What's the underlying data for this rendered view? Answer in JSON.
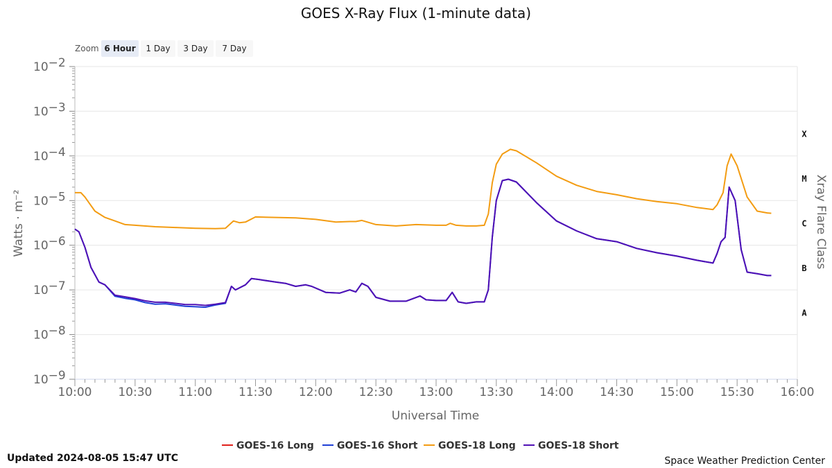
{
  "chart_data": {
    "type": "line",
    "title": "GOES X-Ray Flux (1-minute data)",
    "xlabel": "Universal Time",
    "ylabel": "Watts · m⁻²",
    "y2label": "Xray Flare Class",
    "y_scale": "log",
    "ylim": [
      1e-09,
      0.01
    ],
    "x_range": [
      "10:00",
      "16:00"
    ],
    "x_ticks": [
      "10:00",
      "10:30",
      "11:00",
      "11:30",
      "12:00",
      "12:30",
      "13:00",
      "13:30",
      "14:00",
      "14:30",
      "15:00",
      "15:30",
      "16:00"
    ],
    "y_ticks": [
      {
        "base": "10",
        "exp": "−2"
      },
      {
        "base": "10",
        "exp": "−3"
      },
      {
        "base": "10",
        "exp": "−4"
      },
      {
        "base": "10",
        "exp": "−5"
      },
      {
        "base": "10",
        "exp": "−6"
      },
      {
        "base": "10",
        "exp": "−7"
      },
      {
        "base": "10",
        "exp": "−8"
      },
      {
        "base": "10",
        "exp": "−9"
      }
    ],
    "flare_classes": [
      "X",
      "M",
      "C",
      "B",
      "A"
    ],
    "grid": true,
    "legend_position": "bottom-center",
    "series": [
      {
        "name": "GOES-16 Long",
        "color": "#e0201b",
        "points": []
      },
      {
        "name": "GOES-16 Short",
        "color": "#1f3fd6",
        "points": [
          [
            "10:00",
            2.3e-06
          ],
          [
            "10:02",
            2e-06
          ],
          [
            "10:05",
            9e-07
          ],
          [
            "10:08",
            3.2e-07
          ],
          [
            "10:12",
            1.5e-07
          ],
          [
            "10:15",
            1.3e-07
          ],
          [
            "10:20",
            7.2e-08
          ],
          [
            "10:25",
            6.5e-08
          ],
          [
            "10:30",
            6e-08
          ],
          [
            "10:35",
            5.2e-08
          ],
          [
            "10:40",
            4.8e-08
          ],
          [
            "10:45",
            4.9e-08
          ],
          [
            "10:50",
            4.6e-08
          ],
          [
            "10:55",
            4.3e-08
          ],
          [
            "11:00",
            4.2e-08
          ],
          [
            "11:05",
            4.1e-08
          ],
          [
            "11:10",
            4.6e-08
          ],
          [
            "11:15",
            5e-08
          ],
          [
            "11:18",
            1.2e-07
          ],
          [
            "11:20",
            1e-07
          ],
          [
            "11:25",
            1.3e-07
          ],
          [
            "11:28",
            1.8e-07
          ],
          [
            "11:32",
            1.7e-07
          ],
          [
            "11:40",
            1.5e-07
          ],
          [
            "11:45",
            1.4e-07
          ],
          [
            "11:50",
            1.2e-07
          ],
          [
            "11:55",
            1.3e-07
          ],
          [
            "11:58",
            1.2e-07
          ],
          [
            "12:05",
            8.8e-08
          ],
          [
            "12:12",
            8.5e-08
          ],
          [
            "12:17",
            1e-07
          ],
          [
            "12:20",
            9e-08
          ],
          [
            "12:23",
            1.4e-07
          ],
          [
            "12:26",
            1.2e-07
          ],
          [
            "12:30",
            6.8e-08
          ],
          [
            "12:37",
            5.6e-08
          ],
          [
            "12:45",
            5.6e-08
          ],
          [
            "12:52",
            7.3e-08
          ],
          [
            "12:55",
            6e-08
          ],
          [
            "13:00",
            5.8e-08
          ],
          [
            "13:05",
            5.8e-08
          ],
          [
            "13:08",
            8.8e-08
          ],
          [
            "13:11",
            5.4e-08
          ],
          [
            "13:15",
            5e-08
          ],
          [
            "13:20",
            5.4e-08
          ],
          [
            "13:24",
            5.4e-08
          ],
          [
            "13:26",
            1e-07
          ],
          [
            "13:28",
            1.5e-06
          ],
          [
            "13:30",
            1e-05
          ],
          [
            "13:33",
            2.8e-05
          ],
          [
            "13:36",
            3e-05
          ],
          [
            "13:40",
            2.6e-05
          ],
          [
            "13:50",
            9e-06
          ],
          [
            "14:00",
            3.5e-06
          ],
          [
            "14:10",
            2.1e-06
          ],
          [
            "14:20",
            1.4e-06
          ],
          [
            "14:30",
            1.2e-06
          ],
          [
            "14:40",
            8.5e-07
          ],
          [
            "14:50",
            6.8e-07
          ],
          [
            "15:00",
            5.7e-07
          ],
          [
            "15:10",
            4.6e-07
          ],
          [
            "15:18",
            4e-07
          ],
          [
            "15:20",
            6.5e-07
          ],
          [
            "15:22",
            1.2e-06
          ],
          [
            "15:24",
            1.5e-06
          ],
          [
            "15:26",
            2e-05
          ],
          [
            "15:29",
            1e-05
          ],
          [
            "15:32",
            8e-07
          ],
          [
            "15:35",
            2.5e-07
          ],
          [
            "15:40",
            2.3e-07
          ],
          [
            "15:45",
            2.1e-07
          ],
          [
            "15:47",
            2.1e-07
          ]
        ]
      },
      {
        "name": "GOES-18 Long",
        "color": "#f39c12",
        "points": [
          [
            "10:00",
            1.5e-05
          ],
          [
            "10:03",
            1.5e-05
          ],
          [
            "10:05",
            1.2e-05
          ],
          [
            "10:10",
            5.8e-06
          ],
          [
            "10:15",
            4.2e-06
          ],
          [
            "10:20",
            3.5e-06
          ],
          [
            "10:25",
            2.9e-06
          ],
          [
            "10:30",
            2.8e-06
          ],
          [
            "10:40",
            2.6e-06
          ],
          [
            "10:50",
            2.5e-06
          ],
          [
            "11:00",
            2.4e-06
          ],
          [
            "11:10",
            2.35e-06
          ],
          [
            "11:15",
            2.4e-06
          ],
          [
            "11:19",
            3.5e-06
          ],
          [
            "11:22",
            3.2e-06
          ],
          [
            "11:25",
            3.3e-06
          ],
          [
            "11:30",
            4.3e-06
          ],
          [
            "11:40",
            4.2e-06
          ],
          [
            "11:50",
            4.1e-06
          ],
          [
            "12:00",
            3.8e-06
          ],
          [
            "12:10",
            3.3e-06
          ],
          [
            "12:17",
            3.4e-06
          ],
          [
            "12:20",
            3.4e-06
          ],
          [
            "12:23",
            3.6e-06
          ],
          [
            "12:30",
            2.9e-06
          ],
          [
            "12:40",
            2.7e-06
          ],
          [
            "12:50",
            2.9e-06
          ],
          [
            "13:00",
            2.8e-06
          ],
          [
            "13:05",
            2.8e-06
          ],
          [
            "13:07",
            3.1e-06
          ],
          [
            "13:10",
            2.8e-06
          ],
          [
            "13:15",
            2.7e-06
          ],
          [
            "13:20",
            2.7e-06
          ],
          [
            "13:24",
            2.8e-06
          ],
          [
            "13:26",
            5e-06
          ],
          [
            "13:28",
            2.5e-05
          ],
          [
            "13:30",
            6.5e-05
          ],
          [
            "13:33",
            0.00011
          ],
          [
            "13:37",
            0.00014
          ],
          [
            "13:40",
            0.00013
          ],
          [
            "13:50",
            7e-05
          ],
          [
            "14:00",
            3.5e-05
          ],
          [
            "14:10",
            2.2e-05
          ],
          [
            "14:20",
            1.6e-05
          ],
          [
            "14:30",
            1.35e-05
          ],
          [
            "14:40",
            1.1e-05
          ],
          [
            "14:50",
            9.5e-06
          ],
          [
            "15:00",
            8.5e-06
          ],
          [
            "15:10",
            7e-06
          ],
          [
            "15:18",
            6.3e-06
          ],
          [
            "15:20",
            8e-06
          ],
          [
            "15:23",
            1.5e-05
          ],
          [
            "15:25",
            6e-05
          ],
          [
            "15:27",
            0.00011
          ],
          [
            "15:30",
            6e-05
          ],
          [
            "15:35",
            1.2e-05
          ],
          [
            "15:40",
            5.8e-06
          ],
          [
            "15:45",
            5.3e-06
          ],
          [
            "15:47",
            5.2e-06
          ]
        ]
      },
      {
        "name": "GOES-18 Short",
        "color": "#5011b5",
        "points": [
          [
            "10:00",
            2.3e-06
          ],
          [
            "10:02",
            2e-06
          ],
          [
            "10:05",
            9e-07
          ],
          [
            "10:08",
            3.2e-07
          ],
          [
            "10:12",
            1.5e-07
          ],
          [
            "10:15",
            1.3e-07
          ],
          [
            "10:20",
            7.6e-08
          ],
          [
            "10:25",
            7e-08
          ],
          [
            "10:30",
            6.4e-08
          ],
          [
            "10:35",
            5.7e-08
          ],
          [
            "10:40",
            5.3e-08
          ],
          [
            "10:45",
            5.3e-08
          ],
          [
            "10:50",
            5e-08
          ],
          [
            "10:55",
            4.7e-08
          ],
          [
            "11:00",
            4.7e-08
          ],
          [
            "11:05",
            4.5e-08
          ],
          [
            "11:10",
            4.8e-08
          ],
          [
            "11:15",
            5.2e-08
          ],
          [
            "11:18",
            1.2e-07
          ],
          [
            "11:20",
            1e-07
          ],
          [
            "11:25",
            1.3e-07
          ],
          [
            "11:28",
            1.8e-07
          ],
          [
            "11:32",
            1.7e-07
          ],
          [
            "11:40",
            1.5e-07
          ],
          [
            "11:45",
            1.4e-07
          ],
          [
            "11:50",
            1.2e-07
          ],
          [
            "11:55",
            1.3e-07
          ],
          [
            "11:58",
            1.2e-07
          ],
          [
            "12:05",
            8.8e-08
          ],
          [
            "12:12",
            8.5e-08
          ],
          [
            "12:17",
            1e-07
          ],
          [
            "12:20",
            9e-08
          ],
          [
            "12:23",
            1.4e-07
          ],
          [
            "12:26",
            1.2e-07
          ],
          [
            "12:30",
            6.8e-08
          ],
          [
            "12:37",
            5.6e-08
          ],
          [
            "12:45",
            5.6e-08
          ],
          [
            "12:52",
            7.3e-08
          ],
          [
            "12:55",
            6e-08
          ],
          [
            "13:00",
            5.8e-08
          ],
          [
            "13:05",
            5.8e-08
          ],
          [
            "13:08",
            8.8e-08
          ],
          [
            "13:11",
            5.4e-08
          ],
          [
            "13:15",
            5e-08
          ],
          [
            "13:20",
            5.4e-08
          ],
          [
            "13:24",
            5.4e-08
          ],
          [
            "13:26",
            1e-07
          ],
          [
            "13:28",
            1.5e-06
          ],
          [
            "13:30",
            1e-05
          ],
          [
            "13:33",
            2.8e-05
          ],
          [
            "13:36",
            3e-05
          ],
          [
            "13:40",
            2.6e-05
          ],
          [
            "13:50",
            9e-06
          ],
          [
            "14:00",
            3.5e-06
          ],
          [
            "14:10",
            2.1e-06
          ],
          [
            "14:20",
            1.4e-06
          ],
          [
            "14:30",
            1.2e-06
          ],
          [
            "14:40",
            8.5e-07
          ],
          [
            "14:50",
            6.8e-07
          ],
          [
            "15:00",
            5.7e-07
          ],
          [
            "15:10",
            4.6e-07
          ],
          [
            "15:18",
            4e-07
          ],
          [
            "15:20",
            6.5e-07
          ],
          [
            "15:22",
            1.2e-06
          ],
          [
            "15:24",
            1.5e-06
          ],
          [
            "15:26",
            2e-05
          ],
          [
            "15:29",
            1e-05
          ],
          [
            "15:32",
            8e-07
          ],
          [
            "15:35",
            2.5e-07
          ],
          [
            "15:40",
            2.3e-07
          ],
          [
            "15:45",
            2.1e-07
          ],
          [
            "15:47",
            2.1e-07
          ]
        ]
      }
    ]
  },
  "zoom": {
    "label": "Zoom",
    "options": [
      "6 Hour",
      "1 Day",
      "3 Day",
      "7 Day"
    ],
    "selected": "6 Hour"
  },
  "footer": {
    "updated": "Updated 2024-08-05 15:47 UTC",
    "source": "Space Weather Prediction Center"
  },
  "colors": {
    "grid": "#e6e6e6",
    "axis": "#ccd6eb",
    "zoom_selected_bg": "#e6ebf5",
    "zoom_bg": "#f7f7f7"
  }
}
